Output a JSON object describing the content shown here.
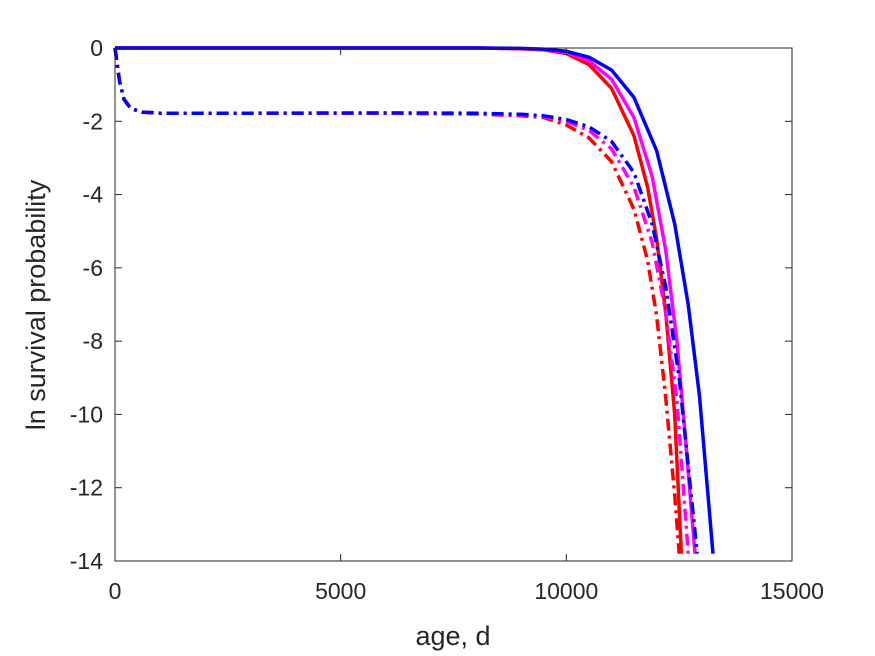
{
  "chart_data": {
    "type": "line",
    "title": "",
    "xlabel": "age, d",
    "ylabel": "ln survival probability",
    "xlim": [
      0,
      15000
    ],
    "ylim": [
      -14,
      0
    ],
    "xticks": [
      0,
      5000,
      10000,
      15000
    ],
    "yticks": [
      0,
      -2,
      -4,
      -6,
      -8,
      -10,
      -12,
      -14
    ],
    "xtick_labels": [
      "0",
      "5000",
      "10000",
      "15000"
    ],
    "ytick_labels": [
      "0",
      "-2",
      "-4",
      "-6",
      "-8",
      "-10",
      "-12",
      "-14"
    ],
    "grid": false,
    "legend": "none",
    "series": [
      {
        "color": "#ff0000",
        "style": "solid",
        "points": [
          [
            0,
            0
          ],
          [
            8000,
            0
          ],
          [
            9000,
            -0.02
          ],
          [
            9500,
            -0.05
          ],
          [
            10000,
            -0.15
          ],
          [
            10500,
            -0.45
          ],
          [
            11000,
            -1.1
          ],
          [
            11500,
            -2.4
          ],
          [
            11800,
            -3.8
          ],
          [
            12000,
            -5.2
          ],
          [
            12200,
            -7.2
          ],
          [
            12400,
            -10.0
          ],
          [
            12550,
            -13.8
          ]
        ]
      },
      {
        "color": "#ff00ff",
        "style": "solid",
        "points": [
          [
            0,
            0
          ],
          [
            8000,
            0
          ],
          [
            9000,
            -0.02
          ],
          [
            9500,
            -0.04
          ],
          [
            10000,
            -0.12
          ],
          [
            10500,
            -0.35
          ],
          [
            11000,
            -0.85
          ],
          [
            11500,
            -1.9
          ],
          [
            11900,
            -3.5
          ],
          [
            12200,
            -5.5
          ],
          [
            12450,
            -8.0
          ],
          [
            12650,
            -10.8
          ],
          [
            12850,
            -13.8
          ]
        ]
      },
      {
        "color": "#0000ff",
        "style": "solid",
        "points": [
          [
            0,
            0
          ],
          [
            8000,
            0
          ],
          [
            9000,
            -0.01
          ],
          [
            9500,
            -0.03
          ],
          [
            10000,
            -0.09
          ],
          [
            10500,
            -0.25
          ],
          [
            11000,
            -0.6
          ],
          [
            11500,
            -1.35
          ],
          [
            12000,
            -2.8
          ],
          [
            12400,
            -4.8
          ],
          [
            12700,
            -7.0
          ],
          [
            12950,
            -9.5
          ],
          [
            13250,
            -13.8
          ]
        ]
      },
      {
        "color": "#ff0000",
        "style": "dashdot",
        "points": [
          [
            0,
            0
          ],
          [
            100,
            -0.9
          ],
          [
            200,
            -1.4
          ],
          [
            350,
            -1.65
          ],
          [
            600,
            -1.75
          ],
          [
            1000,
            -1.78
          ],
          [
            3000,
            -1.78
          ],
          [
            6000,
            -1.78
          ],
          [
            8000,
            -1.8
          ],
          [
            9000,
            -1.85
          ],
          [
            9500,
            -1.9
          ],
          [
            10000,
            -2.1
          ],
          [
            10500,
            -2.45
          ],
          [
            11000,
            -3.1
          ],
          [
            11500,
            -4.4
          ],
          [
            11800,
            -5.8
          ],
          [
            12000,
            -7.3
          ],
          [
            12200,
            -9.5
          ],
          [
            12400,
            -12.2
          ],
          [
            12500,
            -13.8
          ]
        ]
      },
      {
        "color": "#ff00ff",
        "style": "dashdot",
        "points": [
          [
            0,
            0
          ],
          [
            100,
            -0.9
          ],
          [
            200,
            -1.4
          ],
          [
            350,
            -1.65
          ],
          [
            600,
            -1.75
          ],
          [
            1000,
            -1.78
          ],
          [
            3000,
            -1.78
          ],
          [
            6000,
            -1.78
          ],
          [
            8000,
            -1.79
          ],
          [
            9000,
            -1.83
          ],
          [
            9500,
            -1.88
          ],
          [
            10000,
            -2.0
          ],
          [
            10500,
            -2.25
          ],
          [
            11000,
            -2.75
          ],
          [
            11500,
            -3.8
          ],
          [
            11900,
            -5.3
          ],
          [
            12200,
            -7.2
          ],
          [
            12450,
            -9.6
          ],
          [
            12700,
            -13.8
          ]
        ]
      },
      {
        "color": "#0000ff",
        "style": "dashdot",
        "points": [
          [
            0,
            0
          ],
          [
            100,
            -0.9
          ],
          [
            200,
            -1.4
          ],
          [
            350,
            -1.65
          ],
          [
            600,
            -1.75
          ],
          [
            1000,
            -1.78
          ],
          [
            3000,
            -1.78
          ],
          [
            6000,
            -1.77
          ],
          [
            8000,
            -1.78
          ],
          [
            9000,
            -1.81
          ],
          [
            9500,
            -1.85
          ],
          [
            10000,
            -1.95
          ],
          [
            10500,
            -2.15
          ],
          [
            11000,
            -2.55
          ],
          [
            11500,
            -3.4
          ],
          [
            11900,
            -4.8
          ],
          [
            12200,
            -6.5
          ],
          [
            12500,
            -9.0
          ],
          [
            12900,
            -13.8
          ]
        ]
      }
    ]
  }
}
